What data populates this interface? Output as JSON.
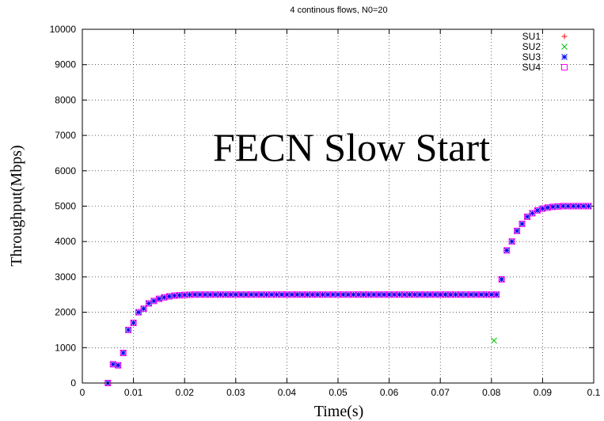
{
  "chart_data": {
    "type": "scatter",
    "title": "4 continous flows, N0=20",
    "xlabel": "Time(s)",
    "ylabel": "Throughput(Mbps)",
    "annotation": "FECN Slow Start",
    "xlim": [
      0,
      0.1
    ],
    "ylim": [
      0,
      10000
    ],
    "xticks": [
      0,
      0.01,
      0.02,
      0.03,
      0.04,
      0.05,
      0.06,
      0.07,
      0.08,
      0.09,
      0.1
    ],
    "yticks": [
      0,
      1000,
      2000,
      3000,
      4000,
      5000,
      6000,
      7000,
      8000,
      9000,
      10000
    ],
    "grid": true,
    "legend_position": "top-right",
    "series": [
      {
        "name": "SU1",
        "marker": "plus",
        "color": "#ff0000"
      },
      {
        "name": "SU2",
        "marker": "cross",
        "color": "#00c000"
      },
      {
        "name": "SU3",
        "marker": "star",
        "color": "#0000ff"
      },
      {
        "name": "SU4",
        "marker": "square",
        "color": "#ff00ff"
      }
    ],
    "x": [
      0.005,
      0.006,
      0.007,
      0.008,
      0.009,
      0.01,
      0.011,
      0.012,
      0.013,
      0.014,
      0.015,
      0.016,
      0.017,
      0.018,
      0.019,
      0.02,
      0.021,
      0.022,
      0.023,
      0.024,
      0.025,
      0.026,
      0.027,
      0.028,
      0.029,
      0.03,
      0.031,
      0.032,
      0.033,
      0.034,
      0.035,
      0.036,
      0.037,
      0.038,
      0.039,
      0.04,
      0.041,
      0.042,
      0.043,
      0.044,
      0.045,
      0.046,
      0.047,
      0.048,
      0.049,
      0.05,
      0.051,
      0.052,
      0.053,
      0.054,
      0.055,
      0.056,
      0.057,
      0.058,
      0.059,
      0.06,
      0.061,
      0.062,
      0.063,
      0.064,
      0.065,
      0.066,
      0.067,
      0.068,
      0.069,
      0.07,
      0.071,
      0.072,
      0.073,
      0.074,
      0.075,
      0.076,
      0.077,
      0.078,
      0.079,
      0.08,
      0.081,
      0.082,
      0.083,
      0.084,
      0.085,
      0.086,
      0.087,
      0.088,
      0.089,
      0.09,
      0.091,
      0.092,
      0.093,
      0.094,
      0.095,
      0.096,
      0.097,
      0.098,
      0.099
    ],
    "y": [
      0,
      530,
      500,
      850,
      1500,
      1700,
      2000,
      2100,
      2250,
      2320,
      2380,
      2420,
      2450,
      2470,
      2480,
      2490,
      2495,
      2500,
      2500,
      2500,
      2500,
      2500,
      2500,
      2500,
      2500,
      2500,
      2500,
      2500,
      2500,
      2500,
      2500,
      2500,
      2500,
      2500,
      2500,
      2500,
      2500,
      2500,
      2500,
      2500,
      2500,
      2500,
      2500,
      2500,
      2500,
      2500,
      2500,
      2500,
      2500,
      2500,
      2500,
      2500,
      2500,
      2500,
      2500,
      2500,
      2500,
      2500,
      2500,
      2500,
      2500,
      2500,
      2500,
      2500,
      2500,
      2500,
      2500,
      2500,
      2500,
      2500,
      2500,
      2500,
      2500,
      2500,
      2500,
      2500,
      2500,
      2930,
      3750,
      4000,
      4300,
      4500,
      4700,
      4800,
      4880,
      4930,
      4960,
      4980,
      4990,
      5000,
      5000,
      5000,
      5000,
      5000,
      5000
    ],
    "outlier": {
      "series": "SU2",
      "x": 0.0805,
      "y": 1200
    }
  }
}
